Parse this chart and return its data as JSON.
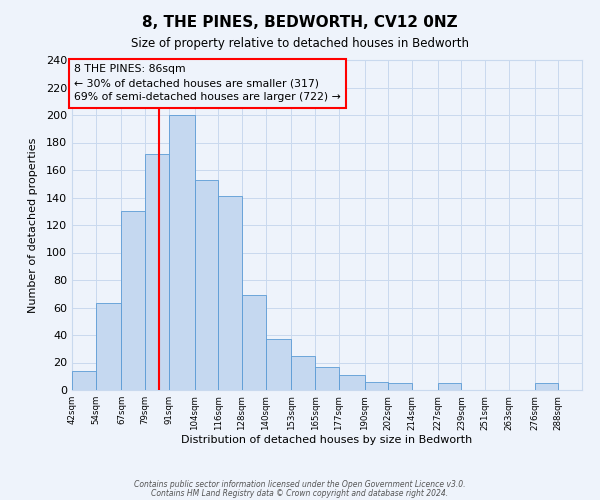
{
  "title": "8, THE PINES, BEDWORTH, CV12 0NZ",
  "subtitle": "Size of property relative to detached houses in Bedworth",
  "xlabel": "Distribution of detached houses by size in Bedworth",
  "ylabel": "Number of detached properties",
  "categories": [
    "42sqm",
    "54sqm",
    "67sqm",
    "79sqm",
    "91sqm",
    "104sqm",
    "116sqm",
    "128sqm",
    "140sqm",
    "153sqm",
    "165sqm",
    "177sqm",
    "190sqm",
    "202sqm",
    "214sqm",
    "227sqm",
    "239sqm",
    "251sqm",
    "263sqm",
    "276sqm",
    "288sqm"
  ],
  "bar_edges": [
    42,
    54,
    67,
    79,
    91,
    104,
    116,
    128,
    140,
    153,
    165,
    177,
    190,
    202,
    214,
    227,
    239,
    251,
    263,
    276,
    288
  ],
  "bar_heights": [
    14,
    63,
    130,
    172,
    200,
    153,
    141,
    69,
    37,
    25,
    17,
    11,
    6,
    5,
    0,
    5,
    0,
    0,
    0,
    5
  ],
  "bar_color": "#c5d8f0",
  "bar_edge_color": "#5b9bd5",
  "property_size": 86,
  "annotation_title": "8 THE PINES: 86sqm",
  "annotation_line1": "← 30% of detached houses are smaller (317)",
  "annotation_line2": "69% of semi-detached houses are larger (722) →",
  "ylim": [
    0,
    240
  ],
  "yticks": [
    0,
    20,
    40,
    60,
    80,
    100,
    120,
    140,
    160,
    180,
    200,
    220,
    240
  ],
  "footer1": "Contains HM Land Registry data © Crown copyright and database right 2024.",
  "footer2": "Contains public sector information licensed under the Open Government Licence v3.0.",
  "bg_color": "#eef3fb",
  "grid_color": "#c9d9ee"
}
